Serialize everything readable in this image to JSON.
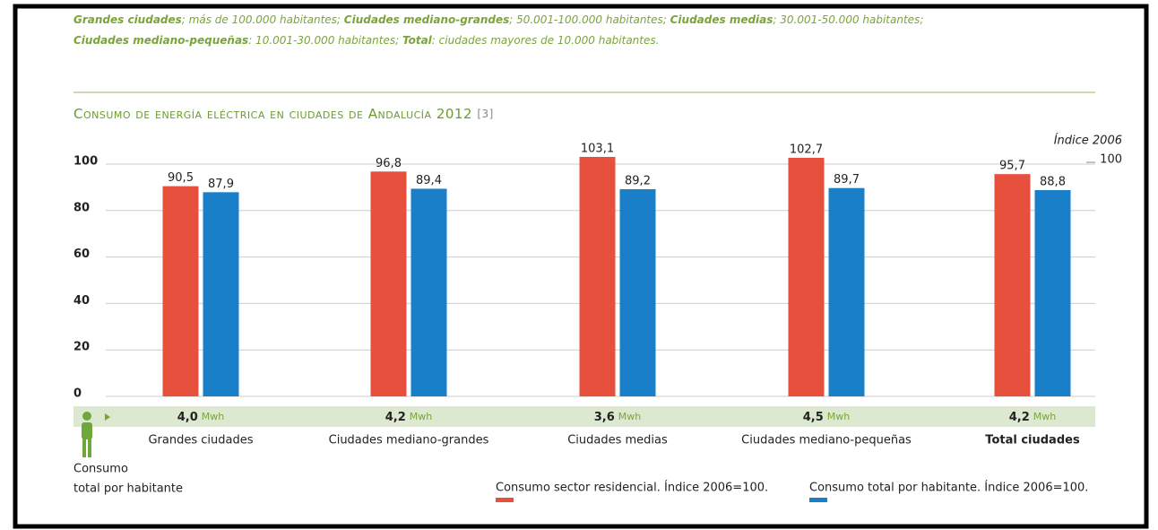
{
  "note": {
    "lines": [
      [
        {
          "text": "Grandes ciudades",
          "bold": true
        },
        {
          "text": "; más de 100.000 habitantes; ",
          "bold": false
        },
        {
          "text": "Ciudades mediano-grandes",
          "bold": true
        },
        {
          "text": "; 50.001-100.000 habitantes; ",
          "bold": false
        },
        {
          "text": "Ciudades medias",
          "bold": true
        },
        {
          "text": "; 30.001-50.000 habitantes;",
          "bold": false
        }
      ],
      [
        {
          "text": "Ciudades mediano-pequeñas",
          "bold": true
        },
        {
          "text": ": 10.001-30.000 habitantes; ",
          "bold": false
        },
        {
          "text": "Total",
          "bold": true
        },
        {
          "text": ": ciudades mayores de 10.000 habitantes.",
          "bold": false
        }
      ]
    ]
  },
  "chart_data": {
    "type": "bar",
    "title": "Consumo de energía eléctrica en ciudades de Andalucía 2012",
    "title_ref": "[3]",
    "index_note": "Índice 2006",
    "index_value": 100,
    "categories": [
      "Grandes ciudades",
      "Ciudades mediano-grandes",
      "Ciudades medias",
      "Ciudades mediano-pequeñas",
      "Total ciudades"
    ],
    "highlight_category": 4,
    "series": [
      {
        "name": "Consumo sector residencial. Índice 2006=100.",
        "color": "#e8503e",
        "values": [
          90.5,
          96.8,
          103.1,
          102.7,
          95.7
        ],
        "value_labels": [
          "90,5",
          "96,8",
          "103,1",
          "102,7",
          "95,7"
        ]
      },
      {
        "name": "Consumo total por habitante. Índice 2006=100.",
        "color": "#1a7fc9",
        "values": [
          87.9,
          89.4,
          89.2,
          89.7,
          88.8
        ],
        "value_labels": [
          "87,9",
          "89,4",
          "89,2",
          "89,7",
          "88,8"
        ]
      }
    ],
    "per_capita": {
      "label": [
        "Consumo",
        "total por habitante"
      ],
      "unit": "Mwh",
      "values": [
        4.0,
        4.2,
        3.6,
        4.5,
        4.2
      ],
      "value_labels": [
        "4,0",
        "4,2",
        "3,6",
        "4,5",
        "4,2"
      ]
    },
    "ylim": [
      0,
      100
    ],
    "yticks": [
      0,
      20,
      40,
      60,
      80,
      100
    ],
    "grid": true
  }
}
